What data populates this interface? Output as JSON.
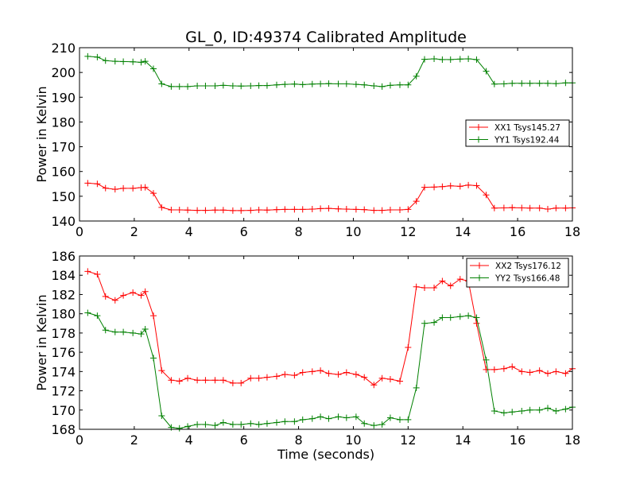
{
  "chart_data": [
    {
      "type": "line",
      "title": "GL_0, ID:49374 Calibrated Amplitude",
      "xlabel": "",
      "ylabel": "Power in Kelvin",
      "xlim": [
        0,
        18
      ],
      "ylim": [
        140,
        210
      ],
      "xticks": [
        0,
        2,
        4,
        6,
        8,
        10,
        12,
        14,
        16,
        18
      ],
      "yticks": [
        140,
        150,
        160,
        170,
        180,
        190,
        200,
        210
      ],
      "legend_position": "center-right",
      "x": [
        0.3,
        0.65,
        0.95,
        1.3,
        1.6,
        1.95,
        2.25,
        2.4,
        2.7,
        3.0,
        3.35,
        3.65,
        3.95,
        4.3,
        4.6,
        4.95,
        5.25,
        5.6,
        5.9,
        6.25,
        6.55,
        6.85,
        7.2,
        7.5,
        7.85,
        8.15,
        8.5,
        8.8,
        9.1,
        9.45,
        9.75,
        10.1,
        10.4,
        10.75,
        11.05,
        11.35,
        11.7,
        12.0,
        12.3,
        12.6,
        12.95,
        13.25,
        13.55,
        13.9,
        14.2,
        14.5,
        14.85,
        15.15,
        15.5,
        15.8,
        16.15,
        16.45,
        16.8,
        17.1,
        17.4,
        17.75,
        18.0
      ],
      "series": [
        {
          "name": "XX1 Tsys145.27",
          "color": "#ff0000",
          "values": [
            155.3,
            155.0,
            153.3,
            152.8,
            153.2,
            153.2,
            153.5,
            153.6,
            151.2,
            145.5,
            144.5,
            144.5,
            144.4,
            144.3,
            144.3,
            144.4,
            144.4,
            144.2,
            144.2,
            144.3,
            144.5,
            144.4,
            144.6,
            144.7,
            144.7,
            144.7,
            144.8,
            145.0,
            145.1,
            144.9,
            144.8,
            144.7,
            144.6,
            144.3,
            144.3,
            144.5,
            144.5,
            144.7,
            148.0,
            153.6,
            153.7,
            153.9,
            154.2,
            154.0,
            154.5,
            154.3,
            150.5,
            145.2,
            145.3,
            145.4,
            145.3,
            145.2,
            145.2,
            144.8,
            145.2,
            145.2,
            145.3
          ]
        },
        {
          "name": "YY1 Tsys192.44",
          "color": "#008000",
          "values": [
            206.5,
            206.2,
            204.8,
            204.5,
            204.4,
            204.3,
            204.1,
            204.5,
            201.5,
            195.4,
            194.3,
            194.3,
            194.3,
            194.6,
            194.6,
            194.6,
            194.8,
            194.6,
            194.5,
            194.6,
            194.7,
            194.7,
            195.0,
            195.2,
            195.3,
            195.1,
            195.3,
            195.4,
            195.5,
            195.4,
            195.4,
            195.2,
            195.0,
            194.6,
            194.3,
            194.8,
            195.0,
            195.0,
            198.5,
            205.3,
            205.5,
            205.2,
            205.2,
            205.4,
            205.5,
            205.2,
            200.5,
            195.3,
            195.4,
            195.6,
            195.6,
            195.6,
            195.6,
            195.6,
            195.5,
            195.8,
            195.8
          ]
        }
      ]
    },
    {
      "type": "line",
      "title": "",
      "xlabel": "Time (seconds)",
      "ylabel": "Power in Kelvin",
      "xlim": [
        0,
        18
      ],
      "ylim": [
        168,
        186
      ],
      "xticks": [
        0,
        2,
        4,
        6,
        8,
        10,
        12,
        14,
        16,
        18
      ],
      "yticks": [
        168,
        170,
        172,
        174,
        176,
        178,
        180,
        182,
        184,
        186
      ],
      "legend_position": "top-right",
      "x": [
        0.3,
        0.65,
        0.95,
        1.3,
        1.6,
        1.95,
        2.25,
        2.4,
        2.7,
        3.0,
        3.35,
        3.65,
        3.95,
        4.3,
        4.6,
        4.95,
        5.25,
        5.6,
        5.9,
        6.25,
        6.55,
        6.85,
        7.2,
        7.5,
        7.85,
        8.15,
        8.5,
        8.8,
        9.1,
        9.45,
        9.75,
        10.1,
        10.4,
        10.75,
        11.05,
        11.35,
        11.7,
        12.0,
        12.3,
        12.6,
        12.95,
        13.25,
        13.55,
        13.9,
        14.2,
        14.5,
        14.85,
        15.15,
        15.5,
        15.8,
        16.15,
        16.45,
        16.8,
        17.1,
        17.4,
        17.75,
        18.0
      ],
      "series": [
        {
          "name": "XX2 Tsys176.12",
          "color": "#ff0000",
          "values": [
            184.4,
            184.1,
            181.8,
            181.4,
            181.9,
            182.2,
            181.9,
            182.3,
            179.8,
            174.1,
            173.1,
            173.0,
            173.3,
            173.1,
            173.1,
            173.1,
            173.1,
            172.8,
            172.8,
            173.3,
            173.3,
            173.4,
            173.5,
            173.7,
            173.6,
            173.9,
            174.0,
            174.1,
            173.8,
            173.7,
            173.9,
            173.7,
            173.4,
            172.6,
            173.3,
            173.2,
            173.0,
            176.5,
            182.8,
            182.7,
            182.7,
            183.4,
            182.9,
            183.6,
            183.4,
            179.0,
            174.2,
            174.2,
            174.3,
            174.5,
            174.0,
            173.9,
            174.1,
            173.8,
            174.0,
            173.8,
            174.3
          ]
        },
        {
          "name": "YY2 Tsys166.48",
          "color": "#008000",
          "values": [
            180.1,
            179.8,
            178.3,
            178.1,
            178.1,
            178.0,
            177.9,
            178.4,
            175.4,
            169.4,
            168.2,
            168.1,
            168.3,
            168.5,
            168.5,
            168.4,
            168.7,
            168.5,
            168.5,
            168.6,
            168.5,
            168.6,
            168.7,
            168.8,
            168.8,
            169.0,
            169.1,
            169.3,
            169.1,
            169.3,
            169.2,
            169.3,
            168.6,
            168.4,
            168.5,
            169.2,
            169.0,
            169.0,
            172.3,
            179.0,
            179.1,
            179.6,
            179.6,
            179.7,
            179.8,
            179.6,
            175.2,
            169.9,
            169.7,
            169.8,
            169.9,
            170.0,
            170.0,
            170.2,
            169.9,
            170.1,
            170.3
          ]
        }
      ]
    }
  ]
}
